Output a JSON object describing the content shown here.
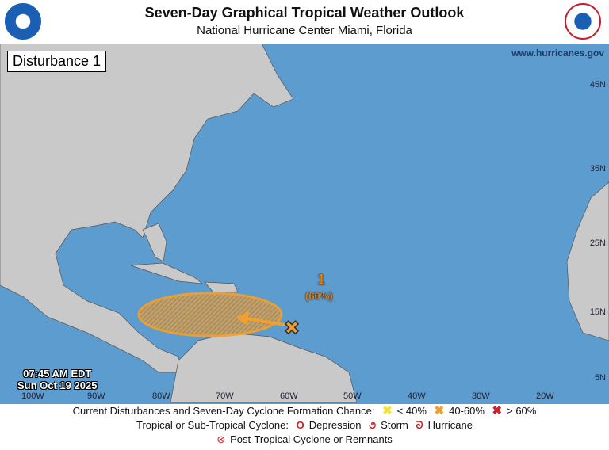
{
  "header": {
    "title": "Seven-Day Graphical Tropical Weather Outlook",
    "subtitle": "National Hurricane Center  Miami, Florida",
    "logo_left": "NOAA",
    "logo_right": "NATIONAL WEATHER SERVICE"
  },
  "map": {
    "panel_label": "Disturbance 1",
    "website": "www.hurricanes.gov",
    "time": "07:45 AM EDT",
    "date": "Sun Oct 19 2025",
    "longitudes": [
      "100W",
      "90W",
      "80W",
      "70W",
      "60W",
      "50W",
      "40W",
      "30W",
      "20W"
    ],
    "latitudes": [
      "45N",
      "35N",
      "25N",
      "15N",
      "5N"
    ],
    "colors": {
      "ocean": "#5d9ccf",
      "land": "#c9c9c9",
      "area": "#f0a030"
    },
    "disturbances": [
      {
        "id": "1",
        "chance": "(60%)",
        "category": "40-60%"
      }
    ]
  },
  "legend": {
    "line1_label": "Current Disturbances and Seven-Day Cyclone Formation Chance:",
    "low": "< 40%",
    "mid": "40-60%",
    "high": "> 60%",
    "line2_label": "Tropical or Sub-Tropical Cyclone:",
    "depression": "Depression",
    "storm": "Storm",
    "hurricane": "Hurricane",
    "post": "Post-Tropical Cyclone or Remnants",
    "colors": {
      "low": "#f5e52a",
      "mid": "#f0a030",
      "high": "#d0202a"
    }
  }
}
